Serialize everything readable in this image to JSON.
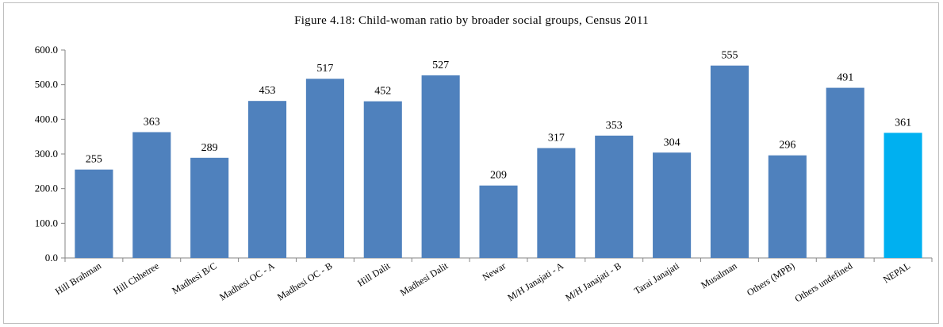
{
  "chart_data": {
    "type": "bar",
    "title": "Figure 4.18: Child-woman ratio by broader social groups, Census 2011",
    "xlabel": "",
    "ylabel": "",
    "ylim": [
      0,
      600
    ],
    "yticks": [
      "0.0",
      "100.0",
      "200.0",
      "300.0",
      "400.0",
      "500.0",
      "600.0"
    ],
    "grid": false,
    "legend": "none",
    "categories": [
      "Hill Brahman",
      "Hill Chhetree",
      "Madhesi B/C",
      "Madhesi OC - A",
      "Madhesi OC - B",
      "Hill Dalit",
      "Madhesi Dalit",
      "Newar",
      "M/H Janajati - A",
      "M/H Janajati - B",
      "Tarai Janajati",
      "Musalman",
      "Others (MPB)",
      "Others undefined",
      "NEPAL"
    ],
    "values": [
      255,
      363,
      289,
      453,
      517,
      452,
      527,
      209,
      317,
      353,
      304,
      555,
      296,
      491,
      361
    ],
    "data_labels": [
      "255",
      "363",
      "289",
      "453",
      "517",
      "452",
      "527",
      "209",
      "317",
      "353",
      "304",
      "555",
      "296",
      "491",
      "361"
    ],
    "colors": {
      "bar": "#4f81bd",
      "highlight": "#00b0f0",
      "axis": "#868686"
    },
    "highlight_category": "NEPAL"
  }
}
